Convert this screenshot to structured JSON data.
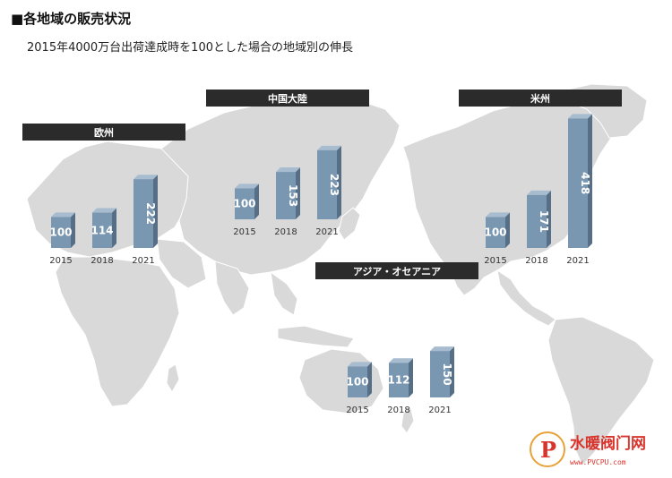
{
  "page": {
    "title": "■各地域の販売状況",
    "subtitle": "2015年4000万台出荷達成時を100とした場合の地域別の伸長"
  },
  "colors": {
    "bar_face": "#7a97b1",
    "bar_top": "#a7bccf",
    "bar_side": "#566f86",
    "label_bg": "#2b2b2b",
    "map_fill": "#d9d9d9",
    "map_line": "#ffffff"
  },
  "chart_data": [
    {
      "type": "bar",
      "region": "欧州",
      "categories": [
        "2015",
        "2018",
        "2021"
      ],
      "values": [
        100,
        114,
        222
      ],
      "ylim": [
        0,
        450
      ]
    },
    {
      "type": "bar",
      "region": "中国大陸",
      "categories": [
        "2015",
        "2018",
        "2021"
      ],
      "values": [
        100,
        153,
        223
      ],
      "ylim": [
        0,
        450
      ]
    },
    {
      "type": "bar",
      "region": "米州",
      "categories": [
        "2015",
        "2018",
        "2021"
      ],
      "values": [
        100,
        171,
        418
      ],
      "ylim": [
        0,
        450
      ]
    },
    {
      "type": "bar",
      "region": "アジア・オセアニア",
      "categories": [
        "2015",
        "2018",
        "2021"
      ],
      "values": [
        100,
        112,
        150
      ],
      "ylim": [
        0,
        450
      ]
    }
  ],
  "watermark": {
    "name": "水暖阀门网",
    "url": "www.PVCPU.com",
    "logo_letter": "P"
  }
}
